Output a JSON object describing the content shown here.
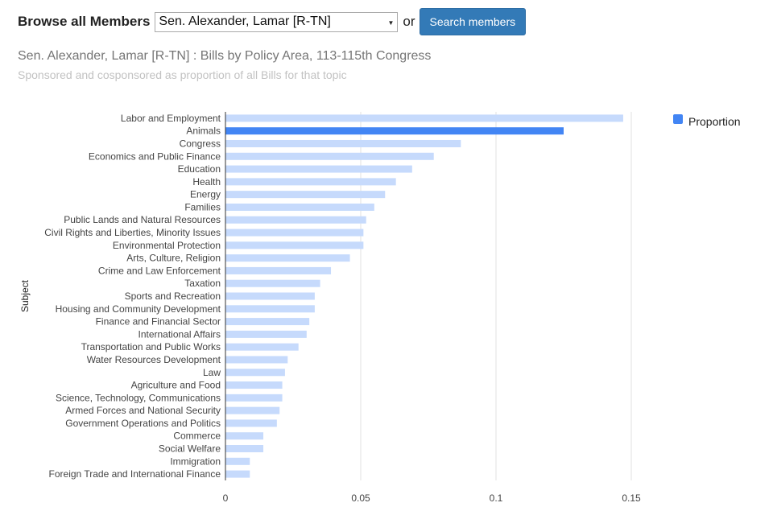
{
  "header": {
    "browse_label": "Browse all Members",
    "select_value": "Sen. Alexander, Lamar [R-TN]",
    "or_label": "or",
    "search_button": "Search members"
  },
  "colors": {
    "bar_default": "#c6dafc",
    "bar_highlight": "#4285f4",
    "button": "#337ab7",
    "gridline": "#e0e0e0"
  },
  "chart_data": {
    "type": "bar",
    "orientation": "horizontal",
    "title": "Sen. Alexander, Lamar [R-TN] : Bills by Policy Area, 113-115th Congress",
    "subtitle": "Sponsored and cosponsored as proportion of all Bills for that topic",
    "ylabel": "Subject",
    "xlabel": "",
    "xlim": [
      0,
      0.15
    ],
    "x_ticks": [
      "0",
      "0.05",
      "0.1",
      "0.15"
    ],
    "x_tick_values": [
      0,
      0.05,
      0.1,
      0.15
    ],
    "grid": true,
    "legend": {
      "position": "right",
      "entries": [
        "Proportion"
      ]
    },
    "highlight_category": "Animals",
    "categories": [
      "Labor and Employment",
      "Animals",
      "Congress",
      "Economics and Public Finance",
      "Education",
      "Health",
      "Energy",
      "Families",
      "Public Lands and Natural Resources",
      "Civil Rights and Liberties, Minority Issues",
      "Environmental Protection",
      "Arts, Culture, Religion",
      "Crime and Law Enforcement",
      "Taxation",
      "Sports and Recreation",
      "Housing and Community Development",
      "Finance and Financial Sector",
      "International Affairs",
      "Transportation and Public Works",
      "Water Resources Development",
      "Law",
      "Agriculture and Food",
      "Science, Technology, Communications",
      "Armed Forces and National Security",
      "Government Operations and Politics",
      "Commerce",
      "Social Welfare",
      "Immigration",
      "Foreign Trade and International Finance"
    ],
    "series": [
      {
        "name": "Proportion",
        "values": [
          0.147,
          0.125,
          0.087,
          0.077,
          0.069,
          0.063,
          0.059,
          0.055,
          0.052,
          0.051,
          0.051,
          0.046,
          0.039,
          0.035,
          0.033,
          0.033,
          0.031,
          0.03,
          0.027,
          0.023,
          0.022,
          0.021,
          0.021,
          0.02,
          0.019,
          0.014,
          0.014,
          0.009,
          0.009
        ]
      }
    ]
  }
}
